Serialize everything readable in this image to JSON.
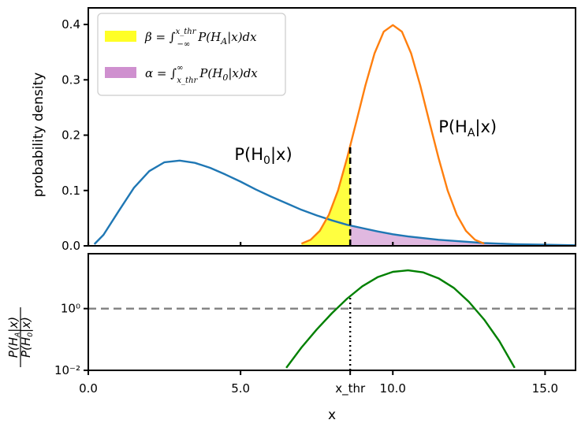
{
  "chart_data": [
    {
      "type": "line",
      "panel": "top",
      "ylabel": "probability density",
      "xlim": [
        0,
        16
      ],
      "ylim": [
        0,
        0.43
      ],
      "yticks": [
        0.0,
        0.1,
        0.2,
        0.3,
        0.4
      ],
      "ytick_labels": [
        "0.0",
        "0.1",
        "0.2",
        "0.3",
        "0.4"
      ],
      "x_threshold": 8.6,
      "series": [
        {
          "name": "P(H0|x)",
          "color": "#1f77b4",
          "x": [
            0.2,
            0.5,
            1.0,
            1.5,
            2.0,
            2.5,
            3.0,
            3.5,
            4.0,
            4.5,
            5.0,
            5.5,
            6.0,
            6.5,
            7.0,
            7.5,
            8.0,
            8.5,
            9.0,
            9.5,
            10.0,
            10.5,
            11.0,
            11.5,
            12.0,
            12.5,
            13.0,
            14.0,
            15.0,
            16.0
          ],
          "y": [
            0.003,
            0.02,
            0.063,
            0.105,
            0.135,
            0.151,
            0.154,
            0.15,
            0.141,
            0.129,
            0.116,
            0.102,
            0.089,
            0.077,
            0.065,
            0.055,
            0.046,
            0.038,
            0.032,
            0.026,
            0.021,
            0.017,
            0.014,
            0.011,
            0.009,
            0.007,
            0.005,
            0.003,
            0.002,
            0.001
          ]
        },
        {
          "name": "P(HA|x)",
          "color": "#ff7f0e",
          "x": [
            7.0,
            7.3,
            7.6,
            7.9,
            8.2,
            8.5,
            8.8,
            9.1,
            9.4,
            9.7,
            10.0,
            10.3,
            10.6,
            10.9,
            11.2,
            11.5,
            11.8,
            12.1,
            12.4,
            12.7,
            13.0
          ],
          "y": [
            0.004,
            0.011,
            0.027,
            0.056,
            0.1,
            0.159,
            0.224,
            0.29,
            0.348,
            0.387,
            0.399,
            0.387,
            0.348,
            0.29,
            0.224,
            0.159,
            0.1,
            0.056,
            0.027,
            0.011,
            0.004
          ]
        }
      ],
      "fills": [
        {
          "name": "β",
          "color": "#ffff00",
          "under": "P(HA|x)",
          "x_range": [
            7.0,
            8.6
          ]
        },
        {
          "name": "α",
          "color": "#c77dc7",
          "under": "P(H0|x)",
          "x_range": [
            8.6,
            16.0
          ]
        }
      ],
      "legend": {
        "placement": "top-left",
        "entries": [
          {
            "symbol": "β",
            "text": "β = ∫_{−∞}^{x_thr} P(H_A|x) dx",
            "color": "#ffff00"
          },
          {
            "symbol": "α",
            "text": "α = ∫_{x_thr}^{∞} P(H_0|x) dx",
            "color": "#c77dc7"
          }
        ]
      },
      "annotations": [
        {
          "text": "P(H0|x)",
          "x": 4.8,
          "y": 0.155
        },
        {
          "text": "P(HA|x)",
          "x": 11.5,
          "y": 0.205
        }
      ]
    },
    {
      "type": "line",
      "panel": "bottom",
      "scale": "log",
      "ylabel": "P(HA|x) / P(H0|x)",
      "xlabel": "x",
      "xlim": [
        0,
        16
      ],
      "ylim": [
        0.01,
        60
      ],
      "yticks": [
        0.01,
        1
      ],
      "ytick_labels": [
        "10⁻²",
        "10⁰"
      ],
      "xticks": [
        0.0,
        5.0,
        8.6,
        10.0,
        15.0
      ],
      "xtick_labels": [
        "0.0",
        "5.0",
        "x_thr",
        "10.0",
        "15.0"
      ],
      "reference_line": {
        "y": 1,
        "color": "#808080",
        "style": "dashed"
      },
      "series": [
        {
          "name": "ratio",
          "color": "#008000",
          "x": [
            6.5,
            7.0,
            7.5,
            8.0,
            8.5,
            9.0,
            9.5,
            10.0,
            10.5,
            11.0,
            11.5,
            12.0,
            12.5,
            13.0,
            13.5,
            14.0
          ],
          "y": [
            0.012,
            0.055,
            0.21,
            0.71,
            2.1,
            5.3,
            10.4,
            15.5,
            17.4,
            14.9,
            9.6,
            4.7,
            1.65,
            0.44,
            0.088,
            0.012
          ]
        }
      ]
    }
  ]
}
